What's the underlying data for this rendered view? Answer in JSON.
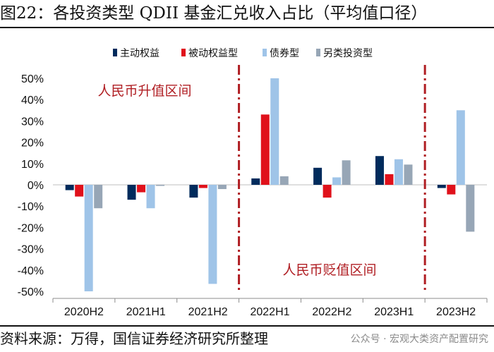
{
  "title": "图22：各投资类型 QDII 基金汇兑收入占比（平均值口径）",
  "source": "资料来源：万得，国信证券经济研究所整理",
  "watermark": "公众号 · 宏观大类资产配置研究",
  "colors": {
    "series": [
      "#002b5c",
      "#e0111b",
      "#9fc4e8",
      "#97a6b6"
    ],
    "annotation": "#b01e23",
    "divider": "#b01e23"
  },
  "chart_data": {
    "type": "bar",
    "categories": [
      "2020H2",
      "2021H1",
      "2021H2",
      "2022H1",
      "2022H2",
      "2023H1",
      "2023H2"
    ],
    "series": [
      {
        "name": "主动权益",
        "values": [
          -2.5,
          -7,
          -6,
          3,
          8,
          13.5,
          -1.5
        ]
      },
      {
        "name": "被动权益型",
        "values": [
          -5.5,
          -3.5,
          -1.5,
          33,
          -6,
          5,
          -4.5
        ]
      },
      {
        "name": "债券型",
        "values": [
          -50,
          -11,
          -46.5,
          50,
          3.5,
          12,
          35
        ]
      },
      {
        "name": "另类投资型",
        "values": [
          -11,
          -0.5,
          -2,
          4,
          11.5,
          9.5,
          -22
        ]
      }
    ],
    "ylim": [
      -50,
      50
    ],
    "yticks": [
      -50,
      -40,
      -30,
      -20,
      -10,
      0,
      10,
      20,
      30,
      40,
      50
    ],
    "ytick_labels": [
      "-50%",
      "-40%",
      "-30%",
      "-20%",
      "-10%",
      "0%",
      "10%",
      "20%",
      "30%",
      "40%",
      "50%"
    ],
    "legend_position": "top-center",
    "annotations": [
      "人民币升值区间",
      "人民币贬值区间"
    ],
    "dividers_between": [
      [
        "2021H2",
        "2022H1"
      ],
      [
        "2023H1",
        "2023H2"
      ]
    ]
  }
}
